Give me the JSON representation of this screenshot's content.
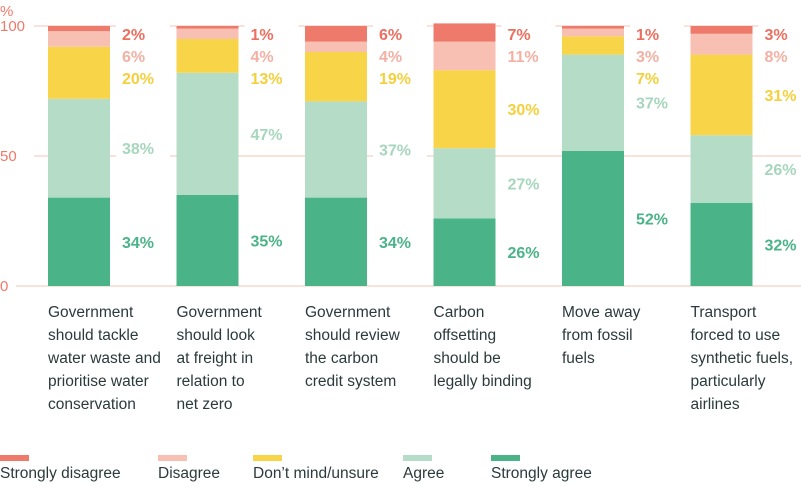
{
  "chart_data": {
    "type": "bar",
    "stacked": true,
    "ylabel": "%",
    "ylim": [
      0,
      100
    ],
    "yticks": [
      0,
      50,
      100
    ],
    "grid": true,
    "legend_position": "bottom",
    "categories": [
      "Government should tackle water waste and prioritise water conservation",
      "Government should look at freight in relation to net zero",
      "Government should review the carbon credit system",
      "Carbon offsetting should be legally binding",
      "Move away from fossil fuels",
      "Transport forced to use synthetic fuels, particularly airlines"
    ],
    "category_lines": [
      [
        "Government",
        "should tackle",
        "water waste and",
        "prioritise water",
        "conservation"
      ],
      [
        "Government",
        "should look",
        "at freight in",
        "relation to",
        "net zero"
      ],
      [
        "Government",
        "should review",
        "the carbon",
        "credit system"
      ],
      [
        "Carbon",
        "offsetting",
        "should be",
        "legally binding"
      ],
      [
        "Move away",
        "from fossil",
        "fuels"
      ],
      [
        "Transport",
        "forced to use",
        "synthetic fuels,",
        "particularly",
        "airlines"
      ]
    ],
    "series": [
      {
        "name": "Strongly agree",
        "color": "#4ab388",
        "values": [
          34,
          35,
          34,
          26,
          52,
          32
        ]
      },
      {
        "name": "Agree",
        "color": "#b5dcc7",
        "values": [
          38,
          47,
          37,
          27,
          37,
          26
        ]
      },
      {
        "name": "Don’t mind/unsure",
        "color": "#f8d448",
        "values": [
          20,
          13,
          19,
          30,
          7,
          31
        ]
      },
      {
        "name": "Disagree",
        "color": "#f7c0b3",
        "values": [
          6,
          4,
          4,
          11,
          3,
          8
        ]
      },
      {
        "name": "Strongly disagree",
        "color": "#ee7a6c",
        "values": [
          2,
          1,
          6,
          7,
          1,
          3
        ]
      }
    ],
    "legend_order": [
      "Strongly disagree",
      "Disagree",
      "Don’t mind/unsure",
      "Agree",
      "Strongly agree"
    ],
    "label_colors": {
      "Strongly agree": "#4ab388",
      "Agree": "#a7d6bd",
      "Don’t mind/unsure": "#f5cf3c",
      "Disagree": "#f3b0a3",
      "Strongly disagree": "#ec6f60"
    },
    "gridline_color": "#f7d0c8"
  }
}
